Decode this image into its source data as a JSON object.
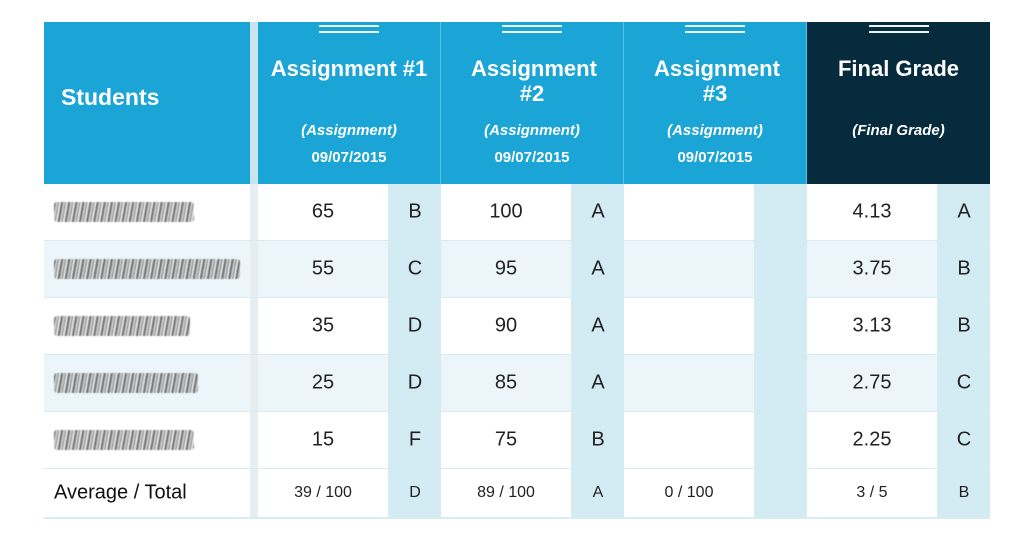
{
  "header": {
    "students_label": "Students",
    "columns": [
      {
        "title": "Assignment #1",
        "subtitle": "(Assignment)",
        "date": "09/07/2015"
      },
      {
        "title": "Assignment #2",
        "subtitle": "(Assignment)",
        "date": "09/07/2015"
      },
      {
        "title": "Assignment #3",
        "subtitle": "(Assignment)",
        "date": "09/07/2015"
      },
      {
        "title": "Final Grade",
        "subtitle": "(Final Grade)",
        "date": ""
      }
    ]
  },
  "rows": [
    {
      "a1": "65",
      "a1g": "B",
      "a2": "100",
      "a2g": "A",
      "a3": "",
      "a3g": "",
      "final": "4.13",
      "finalg": "A"
    },
    {
      "a1": "55",
      "a1g": "C",
      "a2": "95",
      "a2g": "A",
      "a3": "",
      "a3g": "",
      "final": "3.75",
      "finalg": "B"
    },
    {
      "a1": "35",
      "a1g": "D",
      "a2": "90",
      "a2g": "A",
      "a3": "",
      "a3g": "",
      "final": "3.13",
      "finalg": "B"
    },
    {
      "a1": "25",
      "a1g": "D",
      "a2": "85",
      "a2g": "A",
      "a3": "",
      "a3g": "",
      "final": "2.75",
      "finalg": "C"
    },
    {
      "a1": "15",
      "a1g": "F",
      "a2": "75",
      "a2g": "B",
      "a3": "",
      "a3g": "",
      "final": "2.25",
      "finalg": "C"
    }
  ],
  "totals": {
    "label": "Average / Total",
    "a1": "39 / 100",
    "a1g": "D",
    "a2": "89 / 100",
    "a2g": "A",
    "a3": "0 / 100",
    "a3g": "",
    "final": "3 / 5",
    "finalg": "B"
  },
  "colors": {
    "header_blue": "#1aa5d6",
    "final_header": "#052b3d",
    "letter_bg": "#d3ebf3"
  }
}
